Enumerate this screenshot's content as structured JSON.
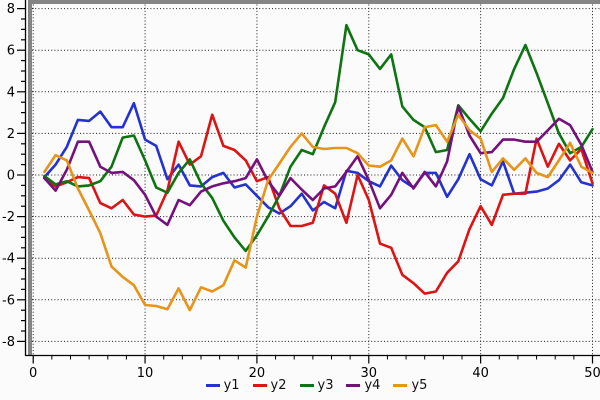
{
  "chart": {
    "background": "#fbfbfb",
    "plot_border_color": "#848484",
    "axis_color": "#000000",
    "grid_style": "dotted",
    "tick_label_color": "#000000",
    "tick_label_size": 13
  },
  "chart_data": {
    "type": "line",
    "title": "",
    "xlabel": "",
    "ylabel": "",
    "xlim": [
      0,
      50.7
    ],
    "ylim": [
      -8.65,
      8.4
    ],
    "xticks": [
      0,
      10,
      20,
      30,
      40,
      50
    ],
    "yticks": [
      -8,
      -6,
      -4,
      -2,
      0,
      2,
      4,
      6,
      8
    ],
    "grid": "on-dotted",
    "legend_position": "bottom-center",
    "x": [
      1,
      2,
      3,
      4,
      5,
      6,
      7,
      8,
      9,
      10,
      11,
      12,
      13,
      14,
      15,
      16,
      17,
      18,
      19,
      20,
      21,
      22,
      23,
      24,
      25,
      26,
      27,
      28,
      29,
      30,
      31,
      32,
      33,
      34,
      35,
      36,
      37,
      38,
      39,
      40,
      41,
      42,
      43,
      44,
      45,
      46,
      47,
      48,
      49,
      50
    ],
    "series": [
      {
        "name": "y1",
        "color": "#2433d0",
        "values": [
          -0.1,
          0.5,
          1.35,
          2.65,
          2.6,
          3.05,
          2.3,
          2.3,
          3.45,
          1.7,
          1.4,
          -0.2,
          0.5,
          -0.5,
          -0.55,
          -0.1,
          0.1,
          -0.6,
          -0.45,
          -1.0,
          -1.55,
          -1.85,
          -1.5,
          -0.9,
          -1.7,
          -1.3,
          -1.6,
          0.2,
          0.1,
          -0.3,
          -0.55,
          0.45,
          -0.25,
          -0.6,
          0.1,
          0.1,
          -1.05,
          -0.2,
          1.0,
          -0.2,
          -0.5,
          0.65,
          -0.9,
          -0.85,
          -0.8,
          -0.65,
          -0.25,
          0.5,
          -0.35,
          -0.5
        ]
      },
      {
        "name": "y2",
        "color": "#dc1413",
        "values": [
          -0.15,
          -0.55,
          -0.35,
          -0.1,
          -0.15,
          -1.35,
          -1.6,
          -1.2,
          -1.9,
          -2.0,
          -1.95,
          -0.75,
          1.6,
          0.5,
          0.9,
          2.9,
          1.4,
          1.2,
          0.7,
          -0.3,
          -0.1,
          -1.6,
          -2.45,
          -2.45,
          -2.3,
          -0.5,
          -0.9,
          -2.3,
          0.0,
          -1.2,
          -3.3,
          -3.5,
          -4.8,
          -5.2,
          -5.7,
          -5.6,
          -4.7,
          -4.15,
          -2.6,
          -1.5,
          -2.4,
          -0.95,
          -0.9,
          -0.9,
          1.75,
          0.4,
          1.5,
          0.7,
          1.25,
          -0.4
        ]
      },
      {
        "name": "y3",
        "color": "#0e7311",
        "values": [
          -0.05,
          -0.45,
          -0.3,
          -0.55,
          -0.5,
          -0.3,
          0.4,
          1.8,
          1.9,
          0.7,
          -0.6,
          -0.85,
          0.1,
          0.75,
          -0.4,
          -1.1,
          -2.2,
          -3.0,
          -3.65,
          -2.9,
          -2.0,
          -1.0,
          0.4,
          1.2,
          1.0,
          2.3,
          3.5,
          7.2,
          6.0,
          5.8,
          5.1,
          5.8,
          3.3,
          2.65,
          2.3,
          1.1,
          1.2,
          3.35,
          2.7,
          2.1,
          2.95,
          3.7,
          5.1,
          6.25,
          4.9,
          3.45,
          2.0,
          1.05,
          1.35,
          2.2
        ]
      },
      {
        "name": "y4",
        "color": "#76107c",
        "values": [
          -0.15,
          -0.75,
          0.25,
          1.6,
          1.6,
          0.4,
          0.1,
          0.15,
          -0.25,
          -0.95,
          -2.0,
          -2.4,
          -1.2,
          -1.45,
          -0.8,
          -0.55,
          -0.4,
          -0.3,
          -0.15,
          0.75,
          -0.3,
          -1.0,
          -0.15,
          -0.7,
          -1.2,
          -0.65,
          -0.55,
          0.15,
          0.9,
          -0.25,
          -1.6,
          -0.95,
          0.1,
          -0.65,
          0.15,
          -0.55,
          0.65,
          3.3,
          1.9,
          1.05,
          1.1,
          1.7,
          1.7,
          1.6,
          1.6,
          2.15,
          2.7,
          2.4,
          1.45,
          0.15
        ]
      },
      {
        "name": "y5",
        "color": "#e79419",
        "values": [
          0.15,
          0.95,
          0.7,
          -0.65,
          -1.7,
          -2.8,
          -4.4,
          -4.9,
          -5.3,
          -6.25,
          -6.3,
          -6.45,
          -5.45,
          -6.5,
          -5.4,
          -5.6,
          -5.3,
          -4.1,
          -4.45,
          -2.0,
          -0.25,
          0.55,
          1.35,
          2.0,
          1.35,
          1.25,
          1.3,
          1.3,
          1.05,
          0.45,
          0.4,
          0.7,
          1.75,
          0.9,
          2.3,
          2.4,
          1.6,
          2.9,
          2.15,
          1.75,
          0.15,
          0.8,
          0.25,
          0.8,
          0.1,
          -0.1,
          0.7,
          1.55,
          0.4,
          0.1
        ]
      }
    ]
  }
}
